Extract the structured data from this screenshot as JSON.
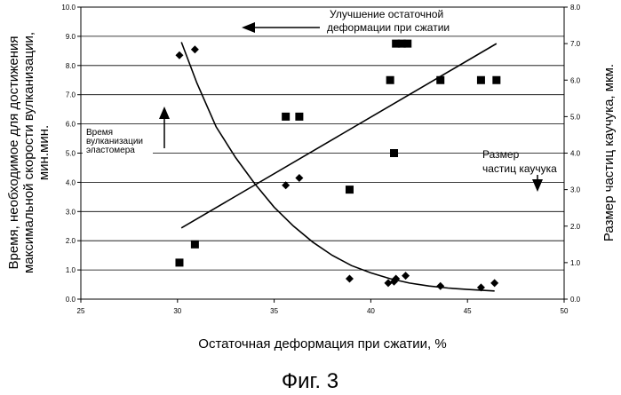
{
  "chart_data": {
    "type": "scatter",
    "xlabel": "Остаточная деформация при сжатии, %",
    "ylabel_left": [
      "Время, необходимое для достижения",
      "максимальной скорости вулканизации,",
      "мин.мин."
    ],
    "ylabel_right": "Размер частиц каучука, мкм.",
    "xlim": [
      25,
      50
    ],
    "ylim_left": [
      0,
      10
    ],
    "ylim_right": [
      0,
      8
    ],
    "x_ticks": [
      25,
      30,
      35,
      40,
      45,
      50
    ],
    "y_ticks_left": [
      "0.0",
      "1.0",
      "2.0",
      "3.0",
      "4.0",
      "5.0",
      "6.0",
      "7.0",
      "8.0",
      "9.0",
      "10.0"
    ],
    "y_ticks_right": [
      "0.0",
      "1.0",
      "2.0",
      "3.0",
      "4.0",
      "5.0",
      "6.0",
      "7.0",
      "8.0"
    ],
    "grid": true,
    "series": [
      {
        "marker": "diamond",
        "axis": "left",
        "x": [
          30.1,
          30.9,
          35.6,
          36.3,
          38.9,
          40.9,
          41.2,
          41.3,
          41.8,
          43.6,
          45.7,
          46.4
        ],
        "y": [
          8.35,
          8.55,
          3.9,
          4.15,
          0.7,
          0.55,
          0.6,
          0.7,
          0.8,
          0.45,
          0.4,
          0.55
        ]
      },
      {
        "marker": "square",
        "axis": "right",
        "x": [
          30.1,
          30.9,
          35.6,
          36.3,
          38.9,
          41.0,
          41.2,
          41.3,
          41.6,
          41.9,
          43.6,
          45.7,
          46.5
        ],
        "y": [
          1.0,
          1.5,
          5.0,
          5.0,
          3.0,
          6.0,
          4.0,
          7.0,
          7.0,
          7.0,
          6.0,
          6.0,
          6.0
        ]
      }
    ],
    "fit_curve_left": {
      "x": [
        30.2,
        31.0,
        32.0,
        33.0,
        34.0,
        35.0,
        36.0,
        37.0,
        38.0,
        39.0,
        40.0,
        41.0,
        42.0,
        43.0,
        44.0,
        45.0,
        46.4
      ],
      "y": [
        8.8,
        7.4,
        5.9,
        4.85,
        3.95,
        3.15,
        2.5,
        1.95,
        1.5,
        1.15,
        0.9,
        0.7,
        0.55,
        0.45,
        0.38,
        0.33,
        0.28
      ]
    },
    "fit_line_right": {
      "x": [
        30.2,
        46.5
      ],
      "y": [
        1.95,
        7.0
      ]
    },
    "annotations": [
      {
        "id": "compression",
        "lines": [
          "Улучшение остаточной",
          "деформации при сжатии"
        ]
      },
      {
        "id": "cure_time",
        "lines": [
          "Время",
          "вулканизации",
          "эластомера"
        ]
      },
      {
        "id": "particle",
        "lines": [
          "Размер",
          "частиц каучука"
        ]
      }
    ]
  },
  "caption": "Фиг. 3"
}
